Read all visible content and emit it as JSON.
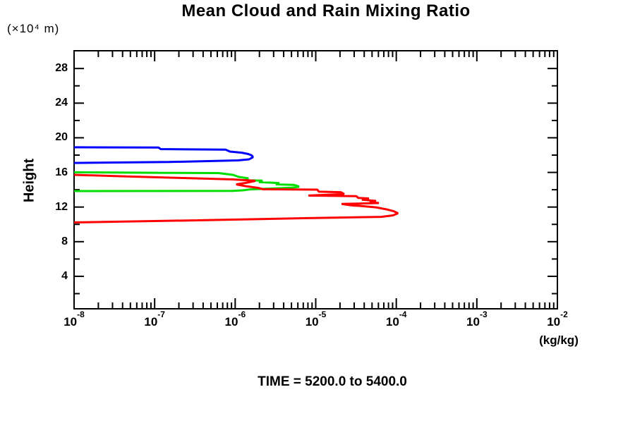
{
  "title": "Mean Cloud and Rain Mixing Ratio",
  "labels": {
    "y_unit": "(×10⁴ m)",
    "y_axis": "Height",
    "x_unit": "(kg/kg)",
    "time": "TIME = 5200.0 to 5400.0"
  },
  "chart_data": {
    "type": "line",
    "title": "Mean Cloud and Rain Mixing Ratio",
    "xlabel": "(kg/kg)",
    "ylabel": "Height (×10⁴ m)",
    "x_scale": "log10",
    "xlim": [
      1e-08,
      0.01
    ],
    "ylim": [
      0.25,
      30.05
    ],
    "x_tick_exponents": [
      -8,
      -7,
      -6,
      -5,
      -4,
      -3,
      -2
    ],
    "x_tick_base": "10",
    "y_major_ticks": [
      4,
      8,
      12,
      16,
      20,
      24,
      28
    ],
    "y_minor_ticks": [
      2,
      6,
      10,
      14,
      18,
      22,
      26,
      30
    ],
    "grid": false,
    "legend": "none",
    "annotation": "TIME = 5200.0 to 5400.0",
    "axis_color": "#000000",
    "series": [
      {
        "name": "blue",
        "color": "#0000ff",
        "points": [
          [
            1e-08,
            18.9
          ],
          [
            1.12e-07,
            18.87
          ],
          [
            1.19e-07,
            18.69
          ],
          [
            7.6e-07,
            18.63
          ],
          [
            8.6e-07,
            18.41
          ],
          [
            1.21e-06,
            18.28
          ],
          [
            1.46e-06,
            18.12
          ],
          [
            1.61e-06,
            17.96
          ],
          [
            1.66e-06,
            17.76
          ],
          [
            1.49e-06,
            17.51
          ],
          [
            1.08e-06,
            17.39
          ],
          [
            1.5e-07,
            17.2
          ],
          [
            1e-08,
            17.1
          ]
        ]
      },
      {
        "name": "green",
        "color": "#00dd00",
        "points": [
          [
            1e-08,
            16.01
          ],
          [
            1.12e-07,
            15.96
          ],
          [
            6.2e-07,
            15.92
          ],
          [
            9.4e-07,
            15.72
          ],
          [
            1.1e-06,
            15.48
          ],
          [
            1.46e-06,
            15.31
          ],
          [
            1.32e-06,
            15.11
          ],
          [
            2.18e-06,
            15.05
          ],
          [
            1.97e-06,
            14.89
          ],
          [
            3.54e-06,
            14.77
          ],
          [
            3.2e-06,
            14.62
          ],
          [
            5.3e-06,
            14.56
          ],
          [
            5.86e-06,
            14.46
          ],
          [
            6.22e-06,
            14.34
          ],
          [
            4.99e-06,
            14.23
          ],
          [
            2.72e-06,
            14.13
          ],
          [
            1.49e-06,
            14.03
          ],
          [
            1.24e-06,
            13.93
          ],
          [
            9.4e-07,
            13.86
          ],
          [
            1e-08,
            13.85
          ]
        ]
      },
      {
        "name": "red",
        "color": "#ff0000",
        "points": [
          [
            1e-08,
            15.72
          ],
          [
            4.5e-08,
            15.53
          ],
          [
            2.3e-07,
            15.35
          ],
          [
            9.4e-07,
            15.19
          ],
          [
            1.78e-06,
            15.03
          ],
          [
            1.4e-06,
            14.82
          ],
          [
            1.03e-06,
            14.62
          ],
          [
            1.34e-06,
            14.42
          ],
          [
            1.93e-06,
            14.21
          ],
          [
            2.22e-06,
            14.05
          ],
          [
            1.05e-05,
            14.01
          ],
          [
            1.09e-05,
            13.77
          ],
          [
            2.05e-05,
            13.72
          ],
          [
            2.26e-05,
            13.5
          ],
          [
            8.1e-06,
            13.33
          ],
          [
            3.18e-05,
            13.26
          ],
          [
            3.39e-05,
            13.05
          ],
          [
            4.58e-05,
            12.99
          ],
          [
            3.75e-05,
            12.85
          ],
          [
            5.61e-05,
            12.71
          ],
          [
            4.68e-05,
            12.56
          ],
          [
            6.08e-05,
            12.46
          ],
          [
            2.09e-05,
            12.36
          ],
          [
            2.88e-05,
            12.18
          ],
          [
            3.52e-05,
            12.14
          ],
          [
            5.61e-05,
            11.97
          ],
          [
            7.59e-05,
            11.73
          ],
          [
            9.29e-05,
            11.52
          ],
          [
            0.000105,
            11.28
          ],
          [
            9.1e-05,
            11.04
          ],
          [
            6.46e-05,
            10.87
          ],
          [
            7.03e-06,
            10.71
          ],
          [
            3.4e-07,
            10.47
          ],
          [
            1e-08,
            10.22
          ]
        ]
      }
    ]
  }
}
